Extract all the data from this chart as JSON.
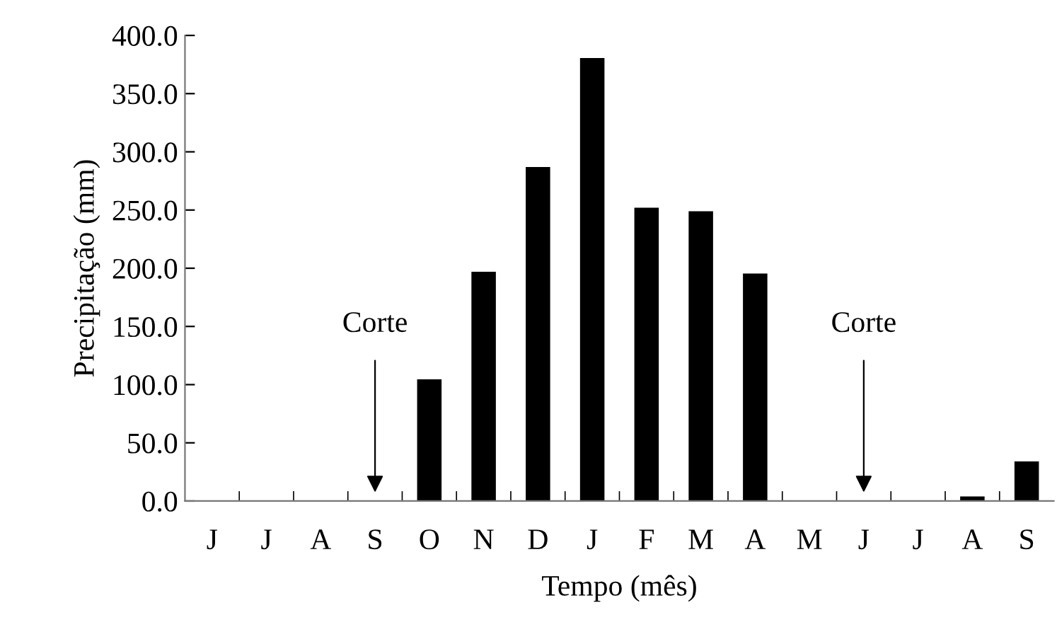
{
  "chart_data": {
    "type": "bar",
    "xlabel": "Tempo (mês)",
    "ylabel": "Precipitação (mm)",
    "categories": [
      "J",
      "J",
      "A",
      "S",
      "O",
      "N",
      "D",
      "J",
      "F",
      "M",
      "A",
      "M",
      "J",
      "J",
      "A",
      "S"
    ],
    "values": [
      0,
      0,
      0,
      0,
      104.5,
      197,
      287,
      380.5,
      252,
      249,
      195.5,
      0,
      0,
      0,
      4,
      34
    ],
    "color": "#000000",
    "ylim": [
      0,
      400
    ],
    "yticks": [
      {
        "value": 0,
        "label": "0.0"
      },
      {
        "value": 50,
        "label": "50.0"
      },
      {
        "value": 100,
        "label": "100.0"
      },
      {
        "value": 150,
        "label": "150.0"
      },
      {
        "value": 200,
        "label": "200.0"
      },
      {
        "value": 250,
        "label": "250.0"
      },
      {
        "value": 300,
        "label": "300.0"
      },
      {
        "value": 350,
        "label": "350.0"
      },
      {
        "value": 400,
        "label": "400.0"
      }
    ],
    "annotations": [
      "Corte",
      "Corte"
    ],
    "grid": false,
    "legend": false
  }
}
